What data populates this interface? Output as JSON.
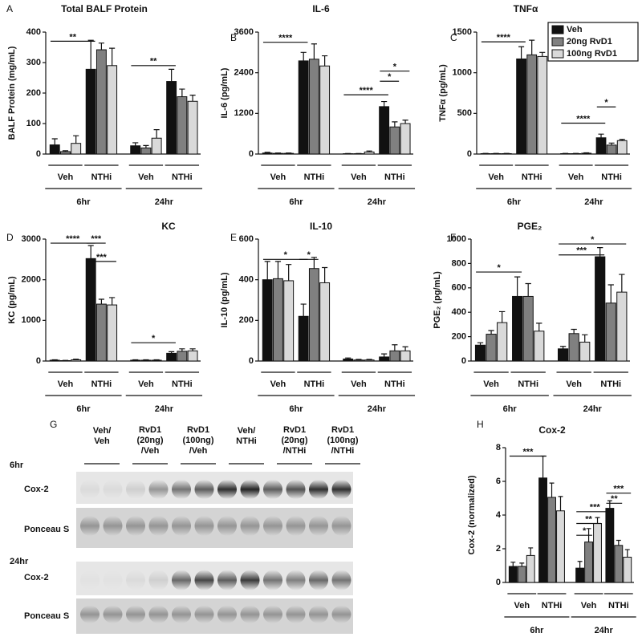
{
  "chart_data": [
    {
      "type": "bar",
      "panel": "A",
      "title": "Total BALF Protein",
      "ylabel": "BALF Protein (mg/mL)",
      "ylim": [
        0,
        400
      ],
      "yticks": [
        0,
        100,
        200,
        300,
        400
      ],
      "groups": [
        "Veh",
        "NTHi",
        "Veh",
        "NTHi"
      ],
      "times": [
        "6hr",
        "24hr"
      ],
      "series": [
        {
          "color": "#111111",
          "values": [
            30,
            278,
            27,
            238
          ],
          "errors": [
            20,
            95,
            10,
            40
          ]
        },
        {
          "color": "#808080",
          "values": [
            8,
            342,
            20,
            188
          ],
          "errors": [
            3,
            22,
            8,
            25
          ]
        },
        {
          "color": "#d9d9d9",
          "values": [
            35,
            290,
            52,
            173
          ],
          "errors": [
            25,
            57,
            28,
            20
          ]
        }
      ],
      "annotations": [
        {
          "text": "**",
          "bars": [
            0,
            3
          ],
          "y": 370
        },
        {
          "text": "**",
          "bars": [
            6,
            9
          ],
          "y": 290
        }
      ]
    },
    {
      "type": "bar",
      "panel": "B",
      "title": "IL-6",
      "ylabel": "IL-6 (pg/mL)",
      "ylim": [
        0,
        3600
      ],
      "yticks": [
        0,
        1200,
        2400,
        3600
      ],
      "groups": [
        "Veh",
        "NTHi",
        "Veh",
        "NTHi"
      ],
      "times": [
        "6hr",
        "24hr"
      ],
      "series": [
        {
          "color": "#111111",
          "values": [
            30,
            2750,
            10,
            1400
          ],
          "errors": [
            20,
            250,
            5,
            150
          ]
        },
        {
          "color": "#808080",
          "values": [
            20,
            2800,
            10,
            800
          ],
          "errors": [
            10,
            450,
            5,
            150
          ]
        },
        {
          "color": "#d9d9d9",
          "values": [
            20,
            2600,
            60,
            900
          ],
          "errors": [
            10,
            300,
            30,
            100
          ]
        }
      ],
      "annotations": [
        {
          "text": "****",
          "bars": [
            0,
            3
          ],
          "y": 3300
        },
        {
          "text": "****",
          "bars": [
            6,
            9
          ],
          "y": 1750
        },
        {
          "text": "*",
          "bars": [
            9,
            10
          ],
          "y": 2150
        },
        {
          "text": "*",
          "bars": [
            9,
            11
          ],
          "y": 2450
        }
      ]
    },
    {
      "type": "bar",
      "panel": "C",
      "title": "TNFα",
      "ylabel": "TNFα (pg/mL)",
      "ylim": [
        0,
        1500
      ],
      "yticks": [
        0,
        500,
        1000,
        1500
      ],
      "groups": [
        "Veh",
        "NTHi",
        "Veh",
        "NTHi"
      ],
      "times": [
        "6hr",
        "24hr"
      ],
      "legend": "upper right",
      "series": [
        {
          "name": "Veh",
          "color": "#111111",
          "values": [
            5,
            1170,
            5,
            200
          ],
          "errors": [
            3,
            150,
            3,
            45
          ]
        },
        {
          "name": "20ng RvD1",
          "color": "#808080",
          "values": [
            5,
            1220,
            5,
            110
          ],
          "errors": [
            3,
            180,
            3,
            25
          ]
        },
        {
          "name": "100ng RvD1",
          "color": "#d9d9d9",
          "values": [
            5,
            1200,
            10,
            165
          ],
          "errors": [
            3,
            50,
            5,
            15
          ]
        }
      ],
      "annotations": [
        {
          "text": "****",
          "bars": [
            0,
            3
          ],
          "y": 1380
        },
        {
          "text": "****",
          "bars": [
            6,
            9
          ],
          "y": 380
        },
        {
          "text": "*",
          "bars": [
            9,
            10
          ],
          "y": 580
        }
      ]
    },
    {
      "type": "bar",
      "panel": "D",
      "title": "KC",
      "ylabel": "KC  (pg/mL)",
      "ylim": [
        0,
        3000
      ],
      "yticks": [
        0,
        1000,
        2000,
        3000
      ],
      "groups": [
        "Veh",
        "NTHi",
        "Veh",
        "NTHi"
      ],
      "times": [
        "6hr",
        "24hr"
      ],
      "series": [
        {
          "color": "#111111",
          "values": [
            20,
            2520,
            20,
            190
          ],
          "errors": [
            10,
            320,
            10,
            40
          ]
        },
        {
          "color": "#808080",
          "values": [
            10,
            1400,
            20,
            240
          ],
          "errors": [
            5,
            120,
            10,
            60
          ]
        },
        {
          "color": "#d9d9d9",
          "values": [
            30,
            1380,
            20,
            250
          ],
          "errors": [
            15,
            180,
            10,
            50
          ]
        }
      ],
      "annotations": [
        {
          "text": "****",
          "bars": [
            0,
            3
          ],
          "y": 2900
        },
        {
          "text": "***",
          "bars": [
            3,
            4
          ],
          "y": 2900
        },
        {
          "text": "***",
          "bars": [
            3,
            5
          ],
          "y": 2450
        },
        {
          "text": "*",
          "bars": [
            6,
            9
          ],
          "y": 450
        }
      ]
    },
    {
      "type": "bar",
      "panel": "E",
      "title": "IL-10",
      "ylabel": "IL-10 (pg/mL)",
      "ylim": [
        0,
        600
      ],
      "yticks": [
        0,
        200,
        400,
        600
      ],
      "groups": [
        "Veh",
        "NTHi",
        "Veh",
        "NTHi"
      ],
      "times": [
        "6hr",
        "24hr"
      ],
      "series": [
        {
          "color": "#111111",
          "values": [
            400,
            220,
            10,
            20
          ],
          "errors": [
            90,
            60,
            5,
            15
          ]
        },
        {
          "color": "#808080",
          "values": [
            405,
            455,
            5,
            50
          ],
          "errors": [
            85,
            55,
            3,
            30
          ]
        },
        {
          "color": "#d9d9d9",
          "values": [
            395,
            385,
            5,
            50
          ],
          "errors": [
            80,
            75,
            3,
            20
          ]
        }
      ],
      "annotations": [
        {
          "text": "*",
          "bars": [
            0,
            3
          ],
          "y": 500
        },
        {
          "text": "*",
          "bars": [
            3,
            4
          ],
          "y": 500
        }
      ]
    },
    {
      "type": "bar",
      "panel": "F",
      "title": "PGE₂",
      "ylabel": "PGE₂ (pg/mL)",
      "ylim": [
        0,
        1000
      ],
      "yticks": [
        0,
        200,
        400,
        600,
        800,
        1000
      ],
      "groups": [
        "Veh",
        "NTHi",
        "Veh",
        "NTHi"
      ],
      "times": [
        "6hr",
        "24hr"
      ],
      "series": [
        {
          "color": "#111111",
          "values": [
            130,
            530,
            100,
            855
          ],
          "errors": [
            20,
            160,
            20,
            75
          ]
        },
        {
          "color": "#808080",
          "values": [
            220,
            530,
            225,
            475
          ],
          "errors": [
            30,
            105,
            35,
            150
          ]
        },
        {
          "color": "#d9d9d9",
          "values": [
            315,
            245,
            155,
            565
          ],
          "errors": [
            90,
            65,
            60,
            145
          ]
        }
      ],
      "annotations": [
        {
          "text": "*",
          "bars": [
            0,
            3
          ],
          "y": 730
        },
        {
          "text": "***",
          "bars": [
            6,
            9
          ],
          "y": 870
        },
        {
          "text": "*",
          "bars": [
            6,
            11
          ],
          "y": 960
        }
      ]
    },
    {
      "type": "bar",
      "panel": "H",
      "title": "Cox-2",
      "ylabel": "Cox-2 (normalized)",
      "ylim": [
        0,
        8
      ],
      "yticks": [
        0,
        2,
        4,
        6,
        8
      ],
      "groups": [
        "Veh",
        "NTHi",
        "Veh",
        "NTHi"
      ],
      "times": [
        "6hr",
        "24hr"
      ],
      "series": [
        {
          "color": "#111111",
          "values": [
            0.95,
            6.2,
            0.85,
            4.4
          ],
          "errors": [
            0.25,
            1.3,
            0.4,
            0.45
          ]
        },
        {
          "color": "#808080",
          "values": [
            0.95,
            5.05,
            2.4,
            2.2
          ],
          "errors": [
            0.2,
            0.85,
            0.8,
            0.3
          ]
        },
        {
          "color": "#d9d9d9",
          "values": [
            1.6,
            4.25,
            3.5,
            1.5
          ],
          "errors": [
            0.45,
            0.85,
            0.35,
            0.45
          ]
        }
      ],
      "annotations": [
        {
          "text": "***",
          "bars": [
            0,
            3
          ],
          "y": 7.5
        },
        {
          "text": "*",
          "bars": [
            6,
            7
          ],
          "y": 2.8
        },
        {
          "text": "**",
          "bars": [
            6,
            8
          ],
          "y": 3.5
        },
        {
          "text": "***",
          "bars": [
            6,
            9
          ],
          "y": 4.2
        },
        {
          "text": "**",
          "bars": [
            9,
            10
          ],
          "y": 4.7
        },
        {
          "text": "***",
          "bars": [
            9,
            11
          ],
          "y": 5.3
        }
      ]
    }
  ],
  "blot": {
    "panel": "G",
    "lanes": [
      [
        "Veh/",
        "Veh"
      ],
      [
        "RvD1",
        "(20ng)",
        "/Veh"
      ],
      [
        "RvD1",
        "(100ng)",
        "/Veh"
      ],
      [
        "Veh/",
        "NTHi"
      ],
      [
        "RvD1",
        "(20ng)",
        "/NTHi"
      ],
      [
        "RvD1",
        "(100ng)",
        "/NTHi"
      ]
    ],
    "blocks": [
      {
        "time": "6hr",
        "rows": [
          "Cox-2",
          "Ponceau S"
        ]
      },
      {
        "time": "24hr",
        "rows": [
          "Cox-2",
          "Ponceau S"
        ]
      }
    ]
  }
}
